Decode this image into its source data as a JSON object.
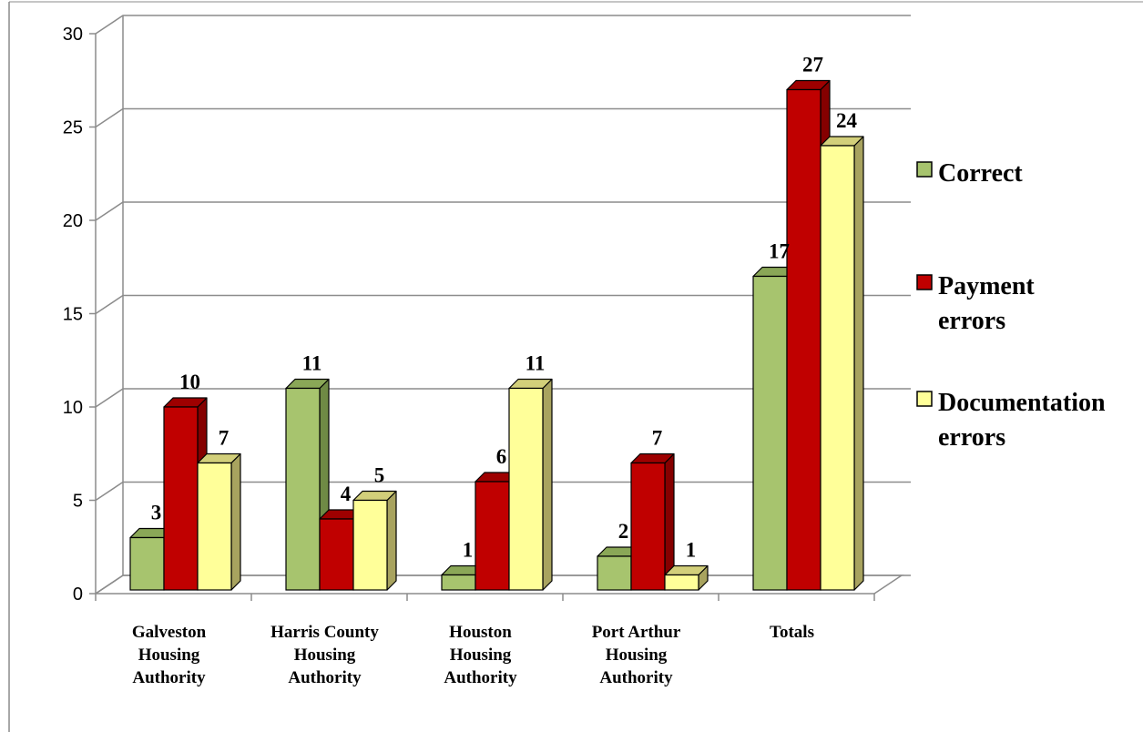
{
  "chart_data": {
    "type": "bar",
    "three_d": true,
    "categories": [
      [
        "Galveston",
        "Housing",
        "Authority"
      ],
      [
        "Harris County",
        "Housing",
        "Authority"
      ],
      [
        "Houston",
        "Housing",
        "Authority"
      ],
      [
        "Port Arthur",
        "Housing",
        "Authority"
      ],
      [
        "Totals"
      ]
    ],
    "series": [
      {
        "name": [
          "Correct"
        ],
        "values": [
          3,
          11,
          1,
          2,
          17
        ],
        "color": "#a7c46e",
        "side": "#6f8a45",
        "top": "#8aa757"
      },
      {
        "name": [
          "Payment",
          "errors"
        ],
        "values": [
          10,
          4,
          6,
          7,
          27
        ],
        "color": "#c00000",
        "side": "#850000",
        "top": "#9e0000"
      },
      {
        "name": [
          "Documentation",
          "errors"
        ],
        "values": [
          7,
          5,
          11,
          1,
          24
        ],
        "color": "#ffff99",
        "side": "#a8a35f",
        "top": "#d2cf7a"
      }
    ],
    "yticks": [
      "0",
      "5",
      "10",
      "15",
      "20",
      "25",
      "30"
    ],
    "ylim": [
      0,
      30
    ],
    "grid": true,
    "legend_position": "right",
    "title": "",
    "xlabel": "",
    "ylabel": ""
  }
}
